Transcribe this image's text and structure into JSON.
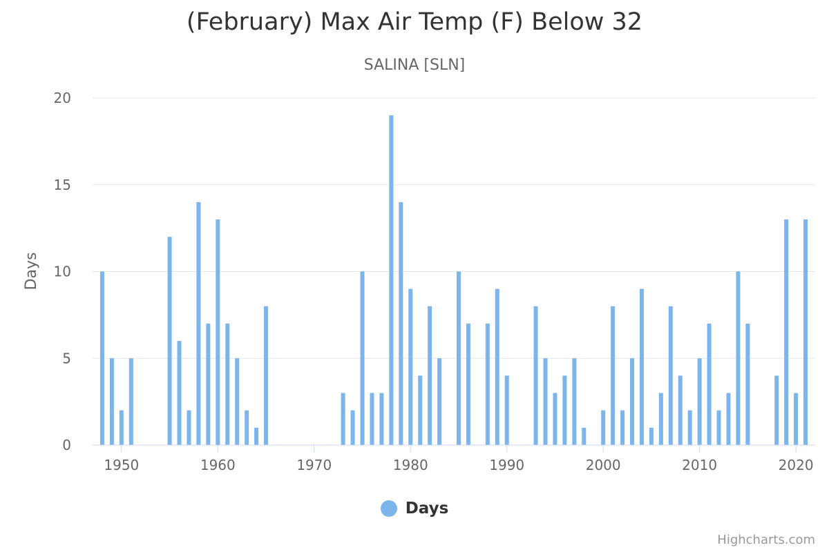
{
  "chart_data": {
    "type": "bar",
    "title": "(February) Max Air Temp (F) Below 32",
    "subtitle": "SALINA [SLN]",
    "ylabel": "Days",
    "xlabel": "",
    "ylim": [
      0,
      20
    ],
    "xlim": [
      1947,
      2022
    ],
    "x_ticks": [
      1950,
      1960,
      1970,
      1980,
      1990,
      2000,
      2010,
      2020
    ],
    "y_ticks": [
      0,
      5,
      10,
      15,
      20
    ],
    "grid": true,
    "legend_position": "bottom-center",
    "color": "#7cb5ec",
    "series": [
      {
        "name": "Days",
        "x": [
          1948,
          1949,
          1950,
          1951,
          1955,
          1956,
          1957,
          1958,
          1959,
          1960,
          1961,
          1962,
          1963,
          1964,
          1965,
          1973,
          1974,
          1975,
          1976,
          1977,
          1978,
          1979,
          1980,
          1981,
          1982,
          1983,
          1985,
          1986,
          1988,
          1989,
          1990,
          1993,
          1994,
          1995,
          1996,
          1997,
          1998,
          2000,
          2001,
          2002,
          2003,
          2004,
          2005,
          2006,
          2007,
          2008,
          2009,
          2010,
          2011,
          2012,
          2013,
          2014,
          2015,
          2018,
          2019,
          2020,
          2021
        ],
        "values": [
          10,
          5,
          2,
          5,
          12,
          6,
          2,
          14,
          7,
          13,
          7,
          5,
          2,
          1,
          8,
          3,
          2,
          10,
          3,
          3,
          19,
          14,
          9,
          4,
          8,
          5,
          10,
          7,
          7,
          9,
          4,
          8,
          5,
          3,
          4,
          5,
          1,
          2,
          8,
          2,
          5,
          9,
          1,
          3,
          8,
          4,
          2,
          5,
          7,
          2,
          3,
          10,
          7,
          4,
          13,
          3,
          13
        ]
      }
    ]
  },
  "credits": "Highcharts.com"
}
